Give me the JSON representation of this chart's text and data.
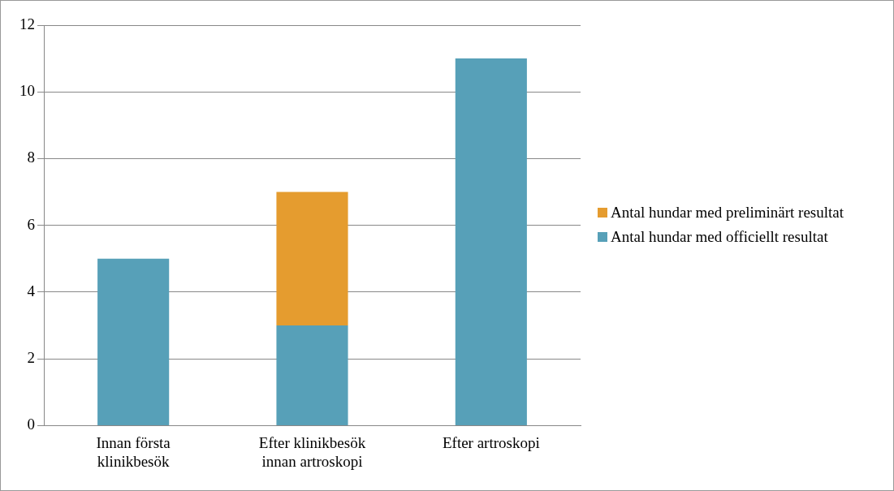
{
  "chart_data": {
    "type": "bar",
    "stacked": true,
    "categories": [
      "Innan första klinikbesök",
      "Efter klinikbesök innan artroskopi",
      "Efter artroskopi"
    ],
    "series": [
      {
        "name": "Antal hundar med officiellt resultat",
        "color": "#57a0b8",
        "values": [
          5,
          3,
          11
        ]
      },
      {
        "name": "Antal hundar med preliminärt resultat",
        "color": "#e59c2f",
        "values": [
          null,
          4,
          null
        ]
      }
    ],
    "ylim": [
      0,
      12
    ],
    "yticks": [
      0,
      2,
      4,
      6,
      8,
      10,
      12
    ],
    "grid": "y",
    "legend": "right"
  }
}
